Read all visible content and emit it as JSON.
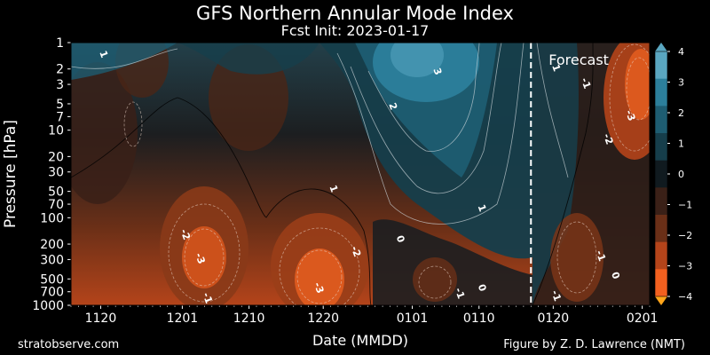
{
  "header": {
    "title": "GFS Northern Annular Mode Index",
    "subtitle": "Fcst Init: 2023-01-17"
  },
  "footer": {
    "site": "stratobserve.com",
    "credit": "Figure by Z. D. Lawrence (NMT)"
  },
  "chart_data": {
    "type": "heatmap",
    "title": "GFS Northern Annular Mode Index",
    "subtitle": "Fcst Init: 2023-01-17",
    "xlabel": "Date (MMDD)",
    "ylabel": "Pressure [hPa]",
    "x_ticks": [
      "1120",
      "1201",
      "1210",
      "1220",
      "0101",
      "0110",
      "0120",
      "0201"
    ],
    "y_ticks": [
      1,
      2,
      3,
      5,
      7,
      10,
      20,
      30,
      50,
      70,
      100,
      200,
      300,
      500,
      700,
      1000
    ],
    "y_scale": "log",
    "y_inverted": true,
    "y_range": [
      1000,
      1
    ],
    "x_range": [
      "2022-11-16",
      "2023-02-02"
    ],
    "forecast_start": "2023-01-17",
    "forecast_label": "Forecast",
    "colorbar": {
      "range": [
        -4,
        4
      ],
      "ticks": [
        "4",
        "3",
        "2",
        "1",
        "0",
        "−1",
        "−2",
        "−3",
        "−4"
      ],
      "colors": [
        "#5aa6c0",
        "#2c7f9b",
        "#1e5d72",
        "#163e4b",
        "#101a1f",
        "#3a2017",
        "#6a2f17",
        "#b4441a",
        "#f2601f"
      ]
    },
    "contour_labels": [
      {
        "text": "1",
        "date": "2022-11-20",
        "p": 1.4
      },
      {
        "text": "3",
        "date": "2023-01-04",
        "p": 2.2
      },
      {
        "text": "2",
        "date": "2022-12-29",
        "p": 5.5
      },
      {
        "text": "1",
        "date": "2022-12-21",
        "p": 48
      },
      {
        "text": "1",
        "date": "2023-01-10",
        "p": 80
      },
      {
        "text": "-2",
        "date": "2022-12-01",
        "p": 160
      },
      {
        "text": "-3",
        "date": "2022-12-03",
        "p": 300
      },
      {
        "text": "-2",
        "date": "2022-12-24",
        "p": 250
      },
      {
        "text": "0",
        "date": "2022-12-30",
        "p": 180
      },
      {
        "text": "-3",
        "date": "2022-12-19",
        "p": 650
      },
      {
        "text": "-1",
        "date": "2022-12-04",
        "p": 850
      },
      {
        "text": "-1",
        "date": "2023-01-07",
        "p": 750
      },
      {
        "text": "0",
        "date": "2023-01-10",
        "p": 650
      },
      {
        "text": "-1",
        "date": "2023-01-20",
        "p": 800
      },
      {
        "text": "1",
        "date": "2023-01-20",
        "p": 2.0
      },
      {
        "text": "-1",
        "date": "2023-01-24",
        "p": 3.0
      },
      {
        "text": "-2",
        "date": "2023-01-27",
        "p": 13
      },
      {
        "text": "-3",
        "date": "2023-01-30",
        "p": 7
      },
      {
        "text": "-1",
        "date": "2023-01-26",
        "p": 280
      },
      {
        "text": "0",
        "date": "2023-01-28",
        "p": 470
      }
    ]
  }
}
